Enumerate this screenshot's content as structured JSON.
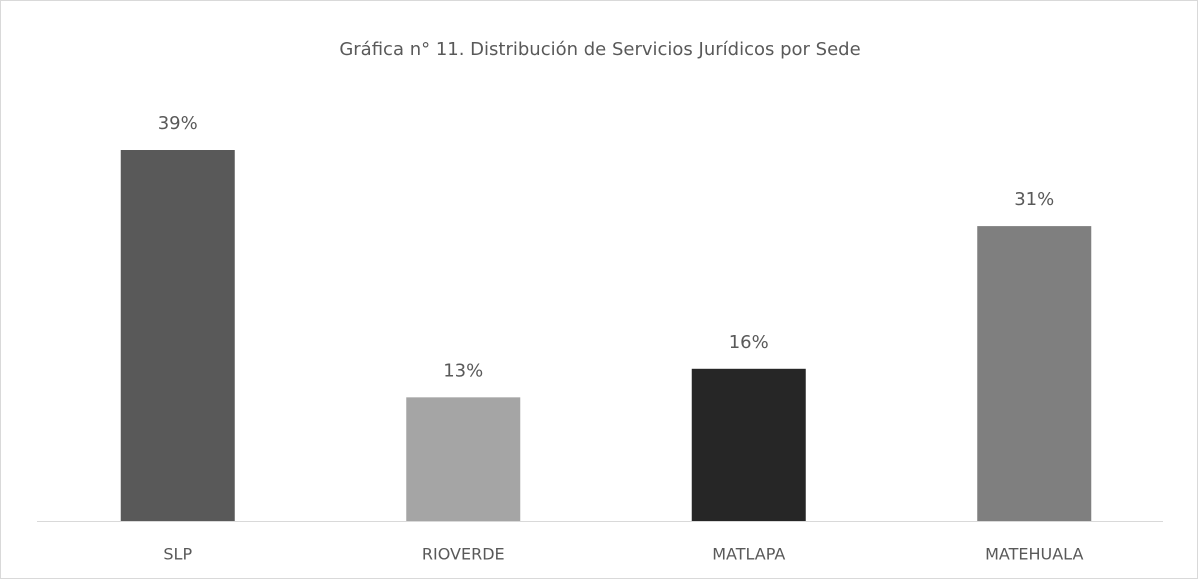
{
  "chart_data": {
    "type": "bar",
    "title": "Gráfica n° 11. Distribución de Servicios Jurídicos por Sede",
    "categories": [
      "SLP",
      "RIOVERDE",
      "MATLAPA",
      "MATEHUALA"
    ],
    "values": [
      39,
      13,
      16,
      31
    ],
    "value_labels": [
      "39%",
      "13%",
      "16%",
      "31%"
    ],
    "colors": [
      "#595959",
      "#a5a5a5",
      "#262626",
      "#7f7f7f"
    ]
  }
}
